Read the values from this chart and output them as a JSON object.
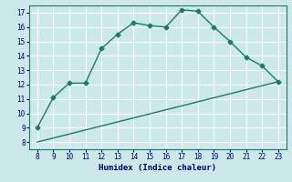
{
  "title": "",
  "xlabel": "Humidex (Indice chaleur)",
  "bg_color": "#cce8e8",
  "grid_color": "#ffffff",
  "line_color": "#1a7a6e",
  "xlim": [
    7.5,
    23.5
  ],
  "ylim": [
    7.5,
    17.5
  ],
  "xticks": [
    8,
    9,
    10,
    11,
    12,
    13,
    14,
    15,
    16,
    17,
    18,
    19,
    20,
    21,
    22,
    23
  ],
  "yticks": [
    8,
    9,
    10,
    11,
    12,
    13,
    14,
    15,
    16,
    17
  ],
  "curve1_x": [
    8,
    9,
    10,
    11,
    12,
    13,
    14,
    15,
    16,
    17,
    18,
    19,
    20,
    21,
    22,
    23
  ],
  "curve1_y": [
    9.0,
    11.1,
    12.1,
    12.1,
    14.5,
    15.5,
    16.3,
    16.1,
    16.0,
    17.2,
    17.1,
    16.0,
    15.0,
    13.9,
    13.3,
    12.2
  ],
  "curve2_x": [
    8,
    23
  ],
  "curve2_y": [
    8.0,
    12.2
  ],
  "marker_style": "D",
  "marker_size": 2.5,
  "line_width": 1.0
}
